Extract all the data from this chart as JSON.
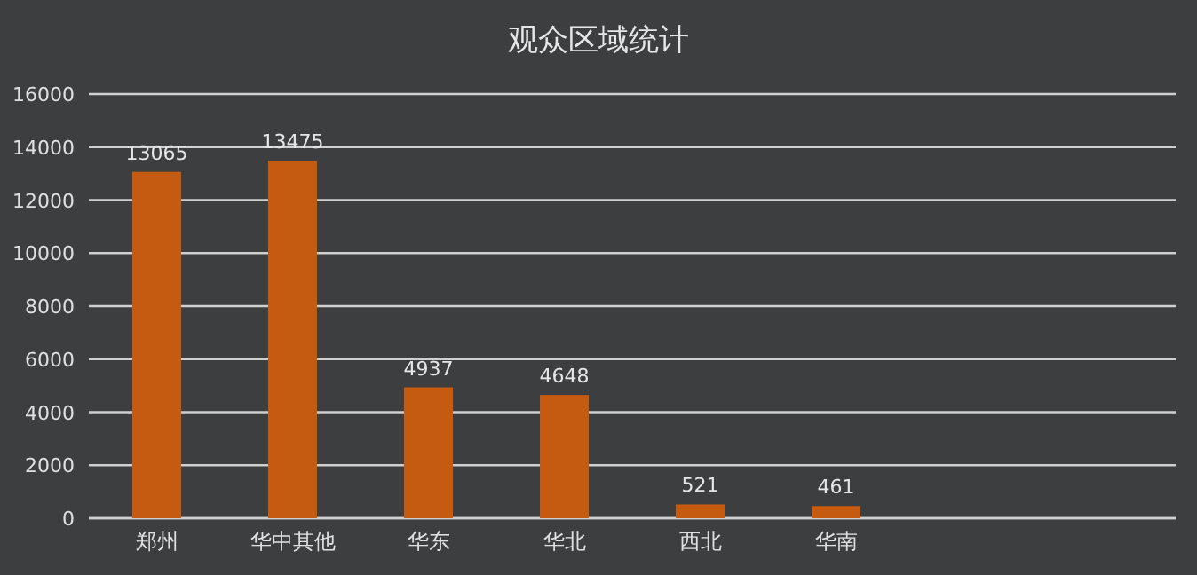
{
  "chart_data": {
    "type": "bar",
    "title": "观众区域统计",
    "categories": [
      "郑州",
      "华中其他",
      "华东",
      "华北",
      "西北",
      "华南",
      null,
      null
    ],
    "values": [
      13065,
      13475,
      4937,
      4648,
      521,
      461,
      null,
      null
    ],
    "color": "#c55a11",
    "ylim": [
      0,
      16000
    ],
    "yticks": [
      0,
      2000,
      4000,
      6000,
      8000,
      10000,
      12000,
      14000,
      16000
    ],
    "grid": "y",
    "data_labels": true
  }
}
